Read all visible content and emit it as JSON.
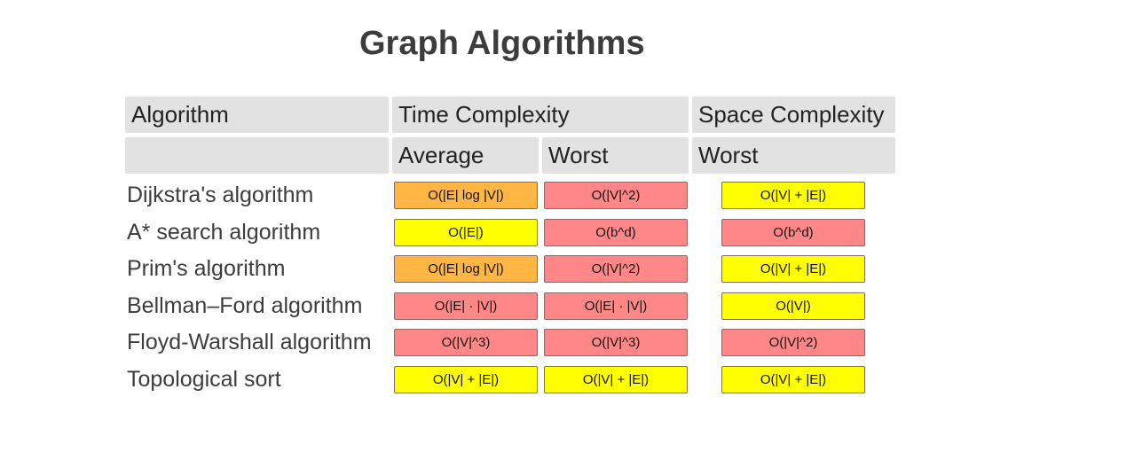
{
  "title": "Graph Algorithms",
  "header": {
    "algorithm": "Algorithm",
    "time_complexity": "Time Complexity",
    "space_complexity": "Space Complexity",
    "average": "Average",
    "worst_time": "Worst",
    "worst_space": "Worst"
  },
  "rating_colors": {
    "good": "#ffff00",
    "fair": "#ffb642",
    "bad": "#ff8787"
  },
  "rows": [
    {
      "name": "Dijkstra's algorithm",
      "time_average": {
        "value": "O(|E| log |V|)",
        "rating": "fair"
      },
      "time_worst": {
        "value": "O(|V|^2)",
        "rating": "bad"
      },
      "space_worst": {
        "value": "O(|V| + |E|)",
        "rating": "good"
      }
    },
    {
      "name": "A* search algorithm",
      "time_average": {
        "value": "O(|E|)",
        "rating": "good"
      },
      "time_worst": {
        "value": "O(b^d)",
        "rating": "bad"
      },
      "space_worst": {
        "value": "O(b^d)",
        "rating": "bad"
      }
    },
    {
      "name": "Prim's algorithm",
      "time_average": {
        "value": "O(|E| log |V|)",
        "rating": "fair"
      },
      "time_worst": {
        "value": "O(|V|^2)",
        "rating": "bad"
      },
      "space_worst": {
        "value": "O(|V| + |E|)",
        "rating": "good"
      }
    },
    {
      "name": "Bellman–Ford algorithm",
      "time_average": {
        "value": "O(|E| · |V|)",
        "rating": "bad"
      },
      "time_worst": {
        "value": "O(|E| · |V|)",
        "rating": "bad"
      },
      "space_worst": {
        "value": "O(|V|)",
        "rating": "good"
      }
    },
    {
      "name": "Floyd-Warshall algorithm",
      "time_average": {
        "value": "O(|V|^3)",
        "rating": "bad"
      },
      "time_worst": {
        "value": "O(|V|^3)",
        "rating": "bad"
      },
      "space_worst": {
        "value": "O(|V|^2)",
        "rating": "bad"
      }
    },
    {
      "name": "Topological sort",
      "time_average": {
        "value": "O(|V| + |E|)",
        "rating": "good"
      },
      "time_worst": {
        "value": "O(|V| + |E|)",
        "rating": "good"
      },
      "space_worst": {
        "value": "O(|V| + |E|)",
        "rating": "good"
      }
    }
  ]
}
